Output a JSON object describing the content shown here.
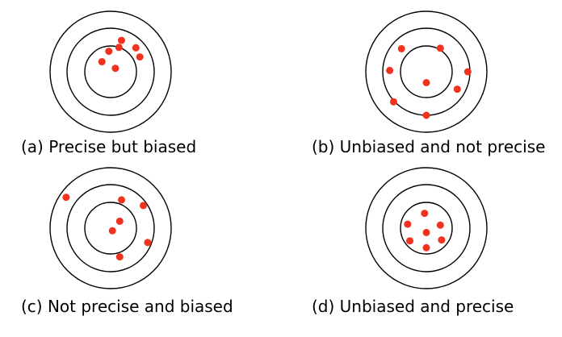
{
  "colors": {
    "ring": "#000000",
    "dot": "#f0321e",
    "background": "#ffffff"
  },
  "panels": [
    {
      "caption": "(a) Precise but biased",
      "hits": [
        [
          0.25,
          -0.72
        ],
        [
          0.58,
          -0.55
        ],
        [
          0.19,
          -0.56
        ],
        [
          0.67,
          -0.34
        ],
        [
          -0.04,
          -0.47
        ],
        [
          0.11,
          -0.08
        ],
        [
          -0.2,
          -0.23
        ]
      ]
    },
    {
      "caption": "(b) Unbiased and not precise",
      "hits": [
        [
          -0.57,
          -0.53
        ],
        [
          0.32,
          -0.54
        ],
        [
          -0.84,
          -0.03
        ],
        [
          0.95,
          0.0
        ],
        [
          0.0,
          0.25
        ],
        [
          0.71,
          0.4
        ],
        [
          -0.75,
          0.69
        ],
        [
          0.0,
          1.0
        ]
      ]
    },
    {
      "caption": "(c) Not precise and biased",
      "hits": [
        [
          0.25,
          -0.65
        ],
        [
          -1.02,
          -0.71
        ],
        [
          0.75,
          -0.52
        ],
        [
          0.21,
          -0.16
        ],
        [
          0.04,
          0.06
        ],
        [
          0.85,
          0.33
        ],
        [
          0.21,
          0.66
        ]
      ]
    },
    {
      "caption": "(d) Unbiased and precise",
      "hits": [
        [
          -0.04,
          -0.34
        ],
        [
          -0.43,
          -0.09
        ],
        [
          0.32,
          -0.07
        ],
        [
          0.0,
          0.1
        ],
        [
          -0.38,
          0.29
        ],
        [
          0.35,
          0.27
        ],
        [
          0.0,
          0.45
        ]
      ]
    }
  ]
}
